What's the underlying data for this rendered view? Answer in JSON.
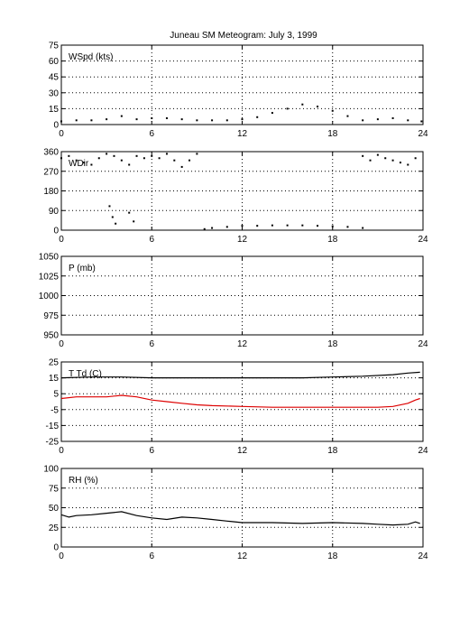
{
  "title": "Juneau SM Meteogram:       July  3, 1999",
  "x_ticks": [
    "0",
    "6",
    "12",
    "18",
    "24"
  ],
  "colors": {
    "series": "#000000",
    "dewpoint": "#dd0000",
    "grid": "#000000"
  },
  "chart_data": [
    {
      "type": "scatter",
      "label": "WSpd (kts)",
      "xlim": [
        0,
        24
      ],
      "ylim": [
        0,
        75
      ],
      "yticks": [
        "0",
        "15",
        "30",
        "45",
        "60",
        "75"
      ],
      "grid": true,
      "series": [
        {
          "x": [
            0,
            1,
            2,
            3,
            4,
            5,
            6,
            7,
            8,
            9,
            10,
            11,
            12,
            13,
            14,
            15,
            16,
            17,
            18,
            19,
            20,
            21,
            22,
            23,
            23.9
          ],
          "y": [
            3,
            4,
            4,
            5,
            8,
            5,
            6,
            6,
            5,
            4,
            4,
            4,
            5,
            7,
            11,
            15,
            19,
            17,
            13,
            8,
            4,
            5,
            6,
            4,
            3
          ]
        }
      ]
    },
    {
      "type": "scatter",
      "label": "WDir",
      "xlim": [
        0,
        24
      ],
      "ylim": [
        0,
        360
      ],
      "yticks": [
        "0",
        "90",
        "180",
        "270",
        "360"
      ],
      "grid": true,
      "series": [
        {
          "x": [
            0,
            0.5,
            1,
            1.5,
            2,
            2.5,
            3,
            3.5,
            4,
            4.5,
            5,
            5.5,
            6,
            6.5,
            7,
            7.5,
            8,
            8.5,
            9,
            20,
            20.5,
            21,
            21.5,
            22,
            22.5,
            23,
            23.5,
            3.2,
            3.4,
            3.6,
            4.5,
            4.8,
            9.5,
            10,
            11,
            12,
            13,
            14,
            15,
            16,
            17,
            18,
            19,
            20
          ],
          "y": [
            330,
            340,
            320,
            310,
            300,
            330,
            350,
            340,
            320,
            300,
            340,
            330,
            340,
            330,
            350,
            320,
            290,
            320,
            350,
            340,
            320,
            345,
            330,
            320,
            310,
            300,
            330,
            110,
            60,
            30,
            80,
            40,
            5,
            10,
            15,
            20,
            20,
            22,
            22,
            22,
            20,
            18,
            15,
            10
          ]
        }
      ]
    },
    {
      "type": "line",
      "label": "P (mb)",
      "xlim": [
        0,
        24
      ],
      "ylim": [
        950,
        1050
      ],
      "yticks": [
        "950",
        "975",
        "1000",
        "1025",
        "1050"
      ],
      "grid": true,
      "series": []
    },
    {
      "type": "line",
      "label": "T Td (C)",
      "xlim": [
        0,
        24
      ],
      "ylim": [
        -25,
        25
      ],
      "yticks": [
        "-25",
        "-15",
        "-5",
        "5",
        "15",
        "25"
      ],
      "grid": true,
      "series": [
        {
          "x": [
            0,
            2,
            4,
            6,
            8,
            10,
            12,
            14,
            16,
            18,
            20,
            22,
            23,
            23.8
          ],
          "y": [
            15,
            15.5,
            15.5,
            15,
            15,
            15,
            15,
            15,
            15,
            15.5,
            16,
            17,
            18,
            18.5
          ]
        },
        {
          "x": [
            0,
            1,
            2,
            3,
            4,
            5,
            6,
            7,
            8,
            9,
            10,
            12,
            14,
            16,
            18,
            20,
            21,
            22,
            23,
            23.5,
            23.8
          ],
          "y": [
            2,
            3,
            3,
            3,
            4,
            3,
            1,
            0,
            -1,
            -2,
            -2.5,
            -3,
            -3.5,
            -3.5,
            -3.5,
            -3.5,
            -3.5,
            -3,
            -1,
            1,
            2
          ]
        }
      ]
    },
    {
      "type": "line",
      "label": "RH (%)",
      "xlim": [
        0,
        24
      ],
      "ylim": [
        0,
        100
      ],
      "yticks": [
        "0",
        "25",
        "50",
        "75",
        "100"
      ],
      "grid": true,
      "series": [
        {
          "x": [
            0,
            0.5,
            1,
            2,
            3,
            4,
            5,
            6,
            7,
            8,
            9,
            10,
            11,
            12,
            14,
            16,
            18,
            20,
            21,
            22,
            23,
            23.5,
            23.8
          ],
          "y": [
            41,
            38,
            40,
            41,
            43,
            45,
            40,
            37,
            35,
            38,
            37,
            35,
            33,
            31,
            31,
            30,
            31,
            30,
            29,
            28,
            29,
            32,
            30
          ]
        }
      ]
    }
  ]
}
